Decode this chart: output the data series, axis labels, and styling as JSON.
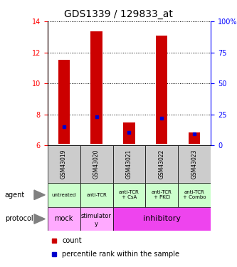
{
  "title": "GDS1339 / 129833_at",
  "samples": [
    "GSM43019",
    "GSM43020",
    "GSM43021",
    "GSM43022",
    "GSM43023"
  ],
  "bar_top": [
    11.5,
    13.35,
    7.5,
    13.1,
    6.85
  ],
  "bar_bottom": [
    6.1,
    6.1,
    6.1,
    6.1,
    6.1
  ],
  "percentile_value": [
    7.2,
    7.85,
    6.85,
    7.75,
    6.75
  ],
  "ylim_left": [
    6,
    14
  ],
  "ylim_right": [
    0,
    100
  ],
  "yticks_left": [
    6,
    8,
    10,
    12,
    14
  ],
  "yticks_right": [
    0,
    25,
    50,
    75,
    100
  ],
  "bar_color": "#cc0000",
  "percentile_color": "#0000cc",
  "agent_labels": [
    "untreated",
    "anti-TCR",
    "anti-TCR\n+ CsA",
    "anti-TCR\n+ PKCi",
    "anti-TCR\n+ Combo"
  ],
  "agent_bg": "#ccffcc",
  "gsm_bg": "#cccccc",
  "legend_count_color": "#cc0000",
  "legend_pct_color": "#0000cc",
  "fig_width": 3.33,
  "fig_height": 3.75
}
